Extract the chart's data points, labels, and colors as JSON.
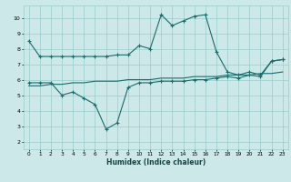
{
  "xlabel": "Humidex (Indice chaleur)",
  "bg_color": "#cce8e8",
  "grid_color": "#99cccc",
  "line_color": "#1a6b6b",
  "xlim": [
    -0.5,
    23.5
  ],
  "ylim": [
    1.5,
    10.8
  ],
  "xticks": [
    0,
    1,
    2,
    3,
    4,
    5,
    6,
    7,
    8,
    9,
    10,
    11,
    12,
    13,
    14,
    15,
    16,
    17,
    18,
    19,
    20,
    21,
    22,
    23
  ],
  "yticks": [
    2,
    3,
    4,
    5,
    6,
    7,
    8,
    9,
    10
  ],
  "line1_x": [
    0,
    1,
    2,
    3,
    4,
    5,
    6,
    7,
    8,
    9,
    10,
    11,
    12,
    13,
    14,
    15,
    16,
    17,
    18,
    19,
    20,
    21,
    22,
    23
  ],
  "line1_y": [
    8.5,
    7.5,
    7.5,
    7.5,
    7.5,
    7.5,
    7.5,
    7.5,
    7.6,
    7.6,
    8.2,
    8.0,
    10.2,
    9.5,
    9.8,
    10.1,
    10.2,
    7.8,
    6.5,
    6.3,
    6.5,
    6.3,
    7.2,
    7.3
  ],
  "line2_x": [
    0,
    1,
    2,
    3,
    4,
    5,
    6,
    7,
    8,
    9,
    10,
    11,
    12,
    13,
    14,
    15,
    16,
    17,
    18,
    19,
    20,
    21,
    22,
    23
  ],
  "line2_y": [
    5.8,
    5.8,
    5.8,
    5.0,
    5.2,
    4.8,
    4.4,
    2.8,
    3.2,
    5.5,
    5.8,
    5.8,
    5.9,
    5.9,
    5.9,
    6.0,
    6.0,
    6.1,
    6.2,
    6.1,
    6.3,
    6.2,
    7.2,
    7.3
  ],
  "line3_x": [
    0,
    1,
    2,
    3,
    4,
    5,
    6,
    7,
    8,
    9,
    10,
    11,
    12,
    13,
    14,
    15,
    16,
    17,
    18,
    19,
    20,
    21,
    22,
    23
  ],
  "line3_y": [
    5.6,
    5.6,
    5.7,
    5.7,
    5.8,
    5.8,
    5.9,
    5.9,
    5.9,
    6.0,
    6.0,
    6.0,
    6.1,
    6.1,
    6.1,
    6.2,
    6.2,
    6.2,
    6.3,
    6.3,
    6.3,
    6.4,
    6.4,
    6.5
  ]
}
